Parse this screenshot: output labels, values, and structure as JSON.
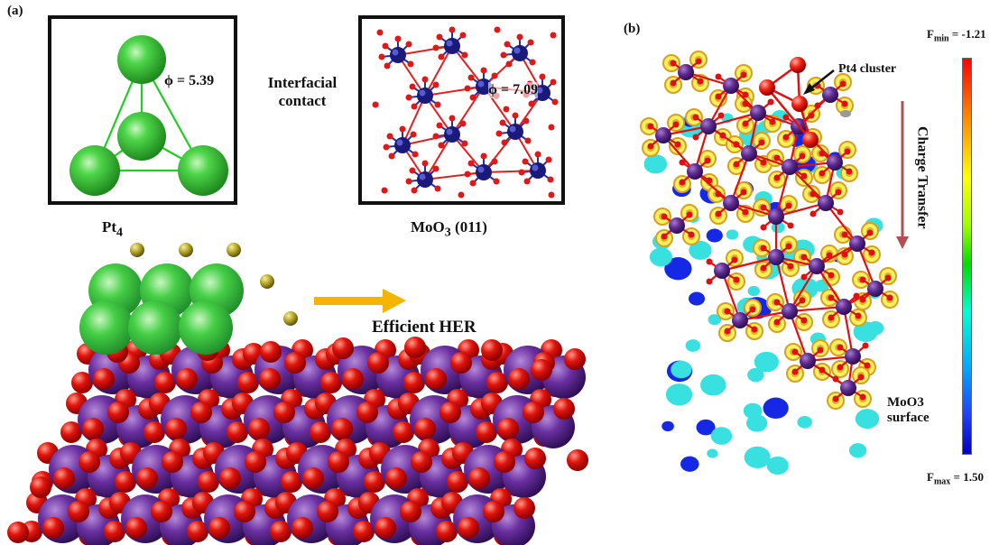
{
  "panel_a": {
    "label": "(a)",
    "pt4": {
      "phi": "ϕ = 5.39",
      "caption_main": "Pt",
      "caption_sub": "4"
    },
    "moo3": {
      "phi": "ϕ = 7.09",
      "caption_main": "MoO",
      "caption_sub": "3",
      "caption_tail": " (011)"
    },
    "contact": "Interfacial contact",
    "her": "Efficient HER"
  },
  "panel_b": {
    "label": "(b)",
    "cluster": "Pt4 cluster",
    "charge": "Charge Transfer",
    "surface_line1": "MoO3",
    "surface_line2": "surface",
    "fmin_label": "F",
    "fmin_sub": "min",
    "fmin_value": " = -1.21",
    "fmax_label": "F",
    "fmax_sub": "max",
    "fmax_value": " = 1.50"
  },
  "colors": {
    "pt": "#33cc33",
    "mo": "#5a2a8c",
    "o": "#e0140c",
    "h": "#a89a1c",
    "arrow": "#f5b400",
    "charge_arrow": "#b05050"
  }
}
